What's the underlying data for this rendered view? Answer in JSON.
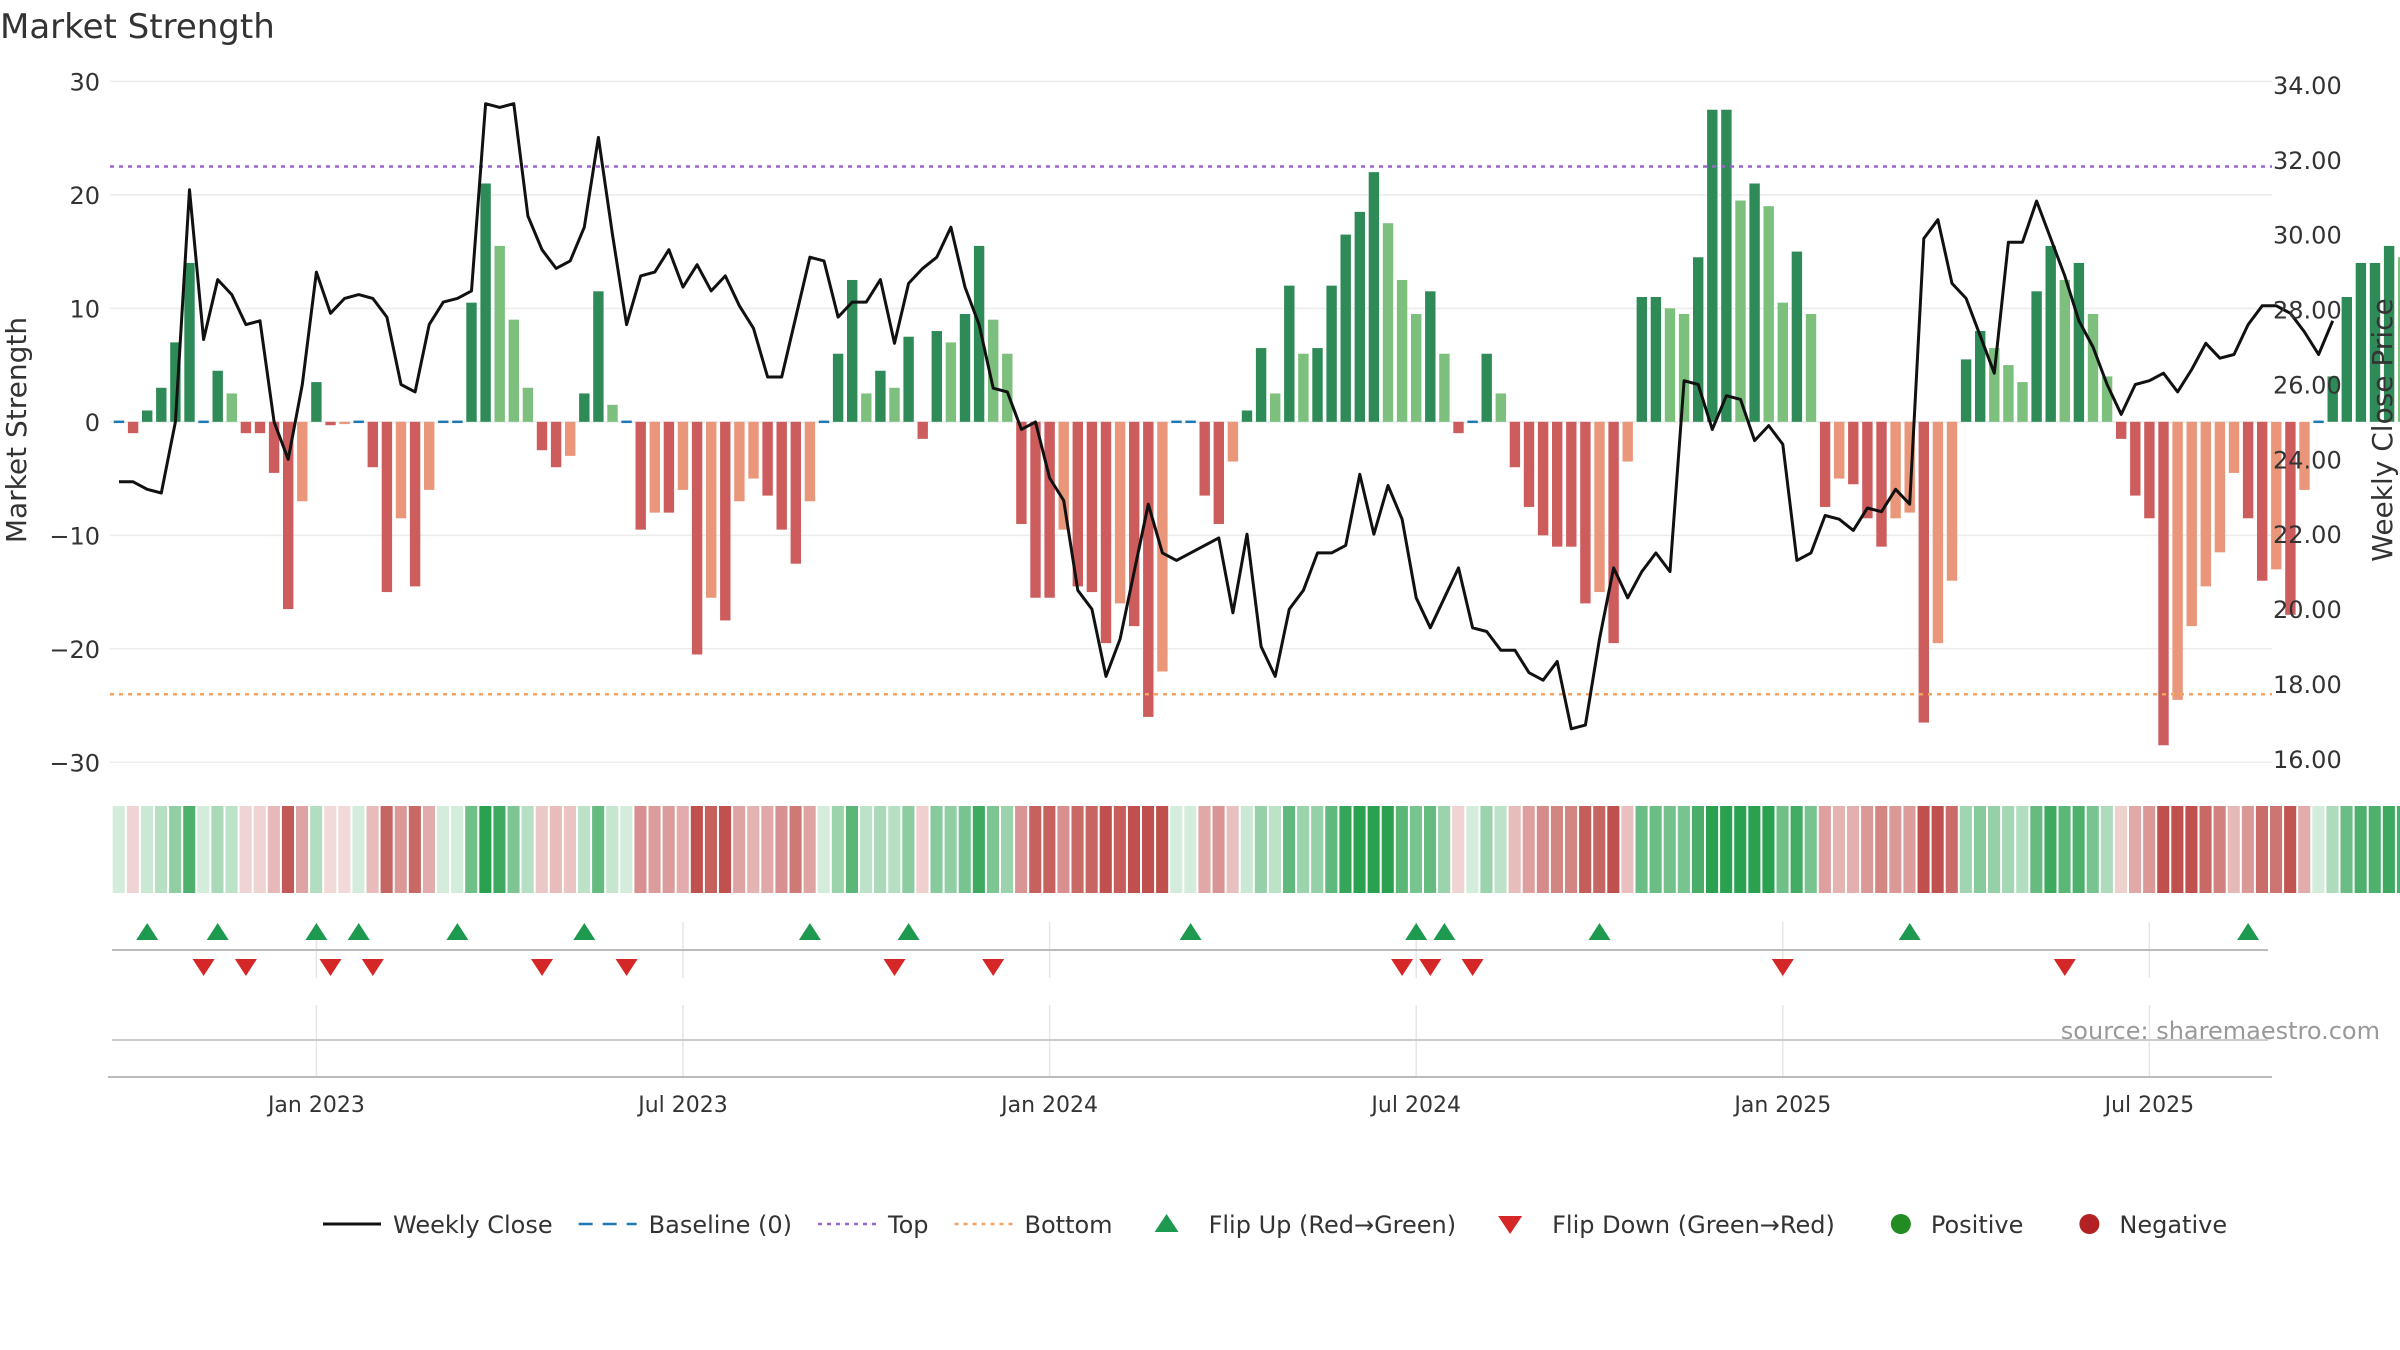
{
  "colors": {
    "pos_strong": "#2e8b57",
    "pos_light": "#7dbf7d",
    "neg_strong": "#cd5c5c",
    "neg_light": "#e9967a",
    "line": "#111111",
    "top": "#9966cc",
    "bottom": "#f4a460",
    "baseline": "#1f77b4",
    "flip_up": "#1e9a50",
    "flip_down": "#d62728",
    "positive": "#228b22",
    "negative": "#b22222"
  },
  "source": "source: sharemaestro.com",
  "chart_data": {
    "type": "bar+line",
    "title": "Market Strength",
    "ylabel_left": "Market Strength",
    "ylabel_right": "Weekly Close Price",
    "ylim_left": [
      -32,
      31
    ],
    "ylim_right": [
      15.3,
      34.4
    ],
    "yticks_left": [
      30,
      20,
      10,
      0,
      -10,
      -20,
      -30
    ],
    "ytick_labels_left": [
      "30",
      "20",
      "10",
      "0",
      "−10",
      "−20",
      "−30"
    ],
    "yticks_right": [
      34,
      32,
      30,
      28,
      26,
      24,
      22,
      20,
      18,
      16
    ],
    "ytick_labels_right": [
      "34.00",
      "32.00",
      "30.00",
      "28.00",
      "26.00",
      "24.00",
      "22.00",
      "20.00",
      "18.00",
      "16.00"
    ],
    "x_start": "2022-09-09",
    "x_ticks": [
      {
        "week": 14,
        "label": "Jan 2023"
      },
      {
        "week": 40,
        "label": "Jul 2023"
      },
      {
        "week": 66,
        "label": "Jan 2024"
      },
      {
        "week": 92,
        "label": "Jul 2024"
      },
      {
        "week": 118,
        "label": "Jan 2025"
      },
      {
        "week": 144,
        "label": "Jul 2025"
      }
    ],
    "top_threshold": 22.5,
    "bottom_threshold": -24,
    "strength": [
      0,
      -1,
      1,
      3,
      7,
      14,
      0,
      4.5,
      2.5,
      -1,
      -1,
      -4.5,
      -16.5,
      -7,
      3.5,
      -0.3,
      -0.2,
      0,
      -4,
      -15,
      -8.5,
      -14.5,
      -6,
      0,
      0,
      10.5,
      21,
      15.5,
      9,
      3,
      -2.5,
      -4,
      -3,
      2.5,
      11.5,
      1.5,
      0,
      -9.5,
      -8,
      -8,
      -6,
      -20.5,
      -15.5,
      -17.5,
      -7,
      -5,
      -6.5,
      -9.5,
      -12.5,
      -7,
      0,
      6,
      12.5,
      2.5,
      4.5,
      3,
      7.5,
      -1.5,
      8,
      7,
      9.5,
      15.5,
      9,
      6,
      -9,
      -15.5,
      -15.5,
      -9.5,
      -14.5,
      -15,
      -19.5,
      -16,
      -18,
      -26,
      -22,
      0,
      0,
      -6.5,
      -9,
      -3.5,
      1,
      6.5,
      2.5,
      12,
      6,
      6.5,
      12,
      16.5,
      18.5,
      22,
      17.5,
      12.5,
      9.5,
      11.5,
      6,
      -1,
      0,
      6,
      2.5,
      -4,
      -7.5,
      -10,
      -11,
      -11,
      -16,
      -15,
      -19.5,
      -3.5,
      11,
      11,
      10,
      9.5,
      14.5,
      27.5,
      27.5,
      19.5,
      21,
      19,
      10.5,
      15,
      9.5,
      -7.5,
      -5,
      -5.5,
      -8.5,
      -11,
      -8.5,
      -8,
      -26.5,
      -19.5,
      -14,
      5.5,
      8,
      6.5,
      5,
      3.5,
      11.5,
      15.5,
      12.5,
      14,
      9.5,
      4,
      -1.5,
      -6.5,
      -8.5,
      -28.5,
      -24.5,
      -18,
      -14.5,
      -11.5,
      -4.5,
      -8.5,
      -14,
      -13,
      -17,
      -6,
      0,
      4,
      11,
      14,
      14,
      15.5,
      14.5
    ],
    "weekly_close": [
      23.4,
      23.4,
      23.2,
      23.1,
      25.0,
      31.2,
      27.2,
      28.8,
      28.4,
      27.6,
      27.7,
      25.0,
      24.0,
      26.0,
      29.0,
      27.9,
      28.3,
      28.4,
      28.3,
      27.8,
      26.0,
      25.8,
      27.6,
      28.2,
      28.3,
      28.5,
      33.5,
      33.4,
      33.5,
      30.5,
      29.6,
      29.1,
      29.3,
      30.2,
      32.6,
      30.0,
      27.6,
      28.9,
      29.0,
      29.6,
      28.6,
      29.2,
      28.5,
      28.9,
      28.1,
      27.5,
      26.2,
      26.2,
      27.8,
      29.4,
      29.3,
      27.8,
      28.2,
      28.2,
      28.8,
      27.1,
      28.7,
      29.1,
      29.4,
      30.2,
      28.6,
      27.6,
      25.9,
      25.8,
      24.8,
      25.0,
      23.5,
      22.9,
      20.5,
      20.0,
      18.2,
      19.2,
      21.0,
      22.8,
      21.5,
      21.3,
      21.5,
      21.7,
      21.9,
      19.9,
      22.0,
      19.0,
      18.2,
      20.0,
      20.5,
      21.5,
      21.5,
      21.7,
      23.6,
      22.0,
      23.3,
      22.4,
      20.3,
      19.5,
      20.3,
      21.1,
      19.5,
      19.4,
      18.9,
      18.9,
      18.3,
      18.1,
      18.6,
      16.8,
      16.9,
      19.2,
      21.1,
      20.3,
      21.0,
      21.5,
      21.0,
      26.1,
      26.0,
      24.8,
      25.7,
      25.6,
      24.5,
      24.9,
      24.4,
      21.3,
      21.5,
      22.5,
      22.4,
      22.1,
      22.7,
      22.6,
      23.2,
      22.8,
      29.9,
      30.4,
      28.7,
      28.3,
      27.3,
      26.3,
      29.8,
      29.8,
      30.9,
      29.9,
      28.9,
      27.7,
      27.0,
      26.0,
      25.2,
      26.0,
      26.1,
      26.3,
      25.8,
      26.4,
      27.1,
      26.7,
      26.8,
      27.6,
      28.1,
      28.1,
      27.9,
      27.4,
      26.8,
      27.7
    ],
    "flips_up": [
      2,
      7,
      14,
      17,
      24,
      33,
      49,
      56,
      76,
      92,
      94,
      105,
      127,
      151
    ],
    "flips_down": [
      6,
      9,
      15,
      18,
      30,
      36,
      55,
      62,
      91,
      93,
      96,
      118,
      138
    ],
    "legend": [
      {
        "label": "Weekly Close",
        "kind": "line"
      },
      {
        "label": "Baseline (0)",
        "kind": "baseline"
      },
      {
        "label": "Top",
        "kind": "top"
      },
      {
        "label": "Bottom",
        "kind": "bottom"
      },
      {
        "label": "Flip Up (Red→Green)",
        "kind": "up"
      },
      {
        "label": "Flip Down (Green→Red)",
        "kind": "down"
      },
      {
        "label": "Positive",
        "kind": "pos"
      },
      {
        "label": "Negative",
        "kind": "neg"
      }
    ]
  }
}
